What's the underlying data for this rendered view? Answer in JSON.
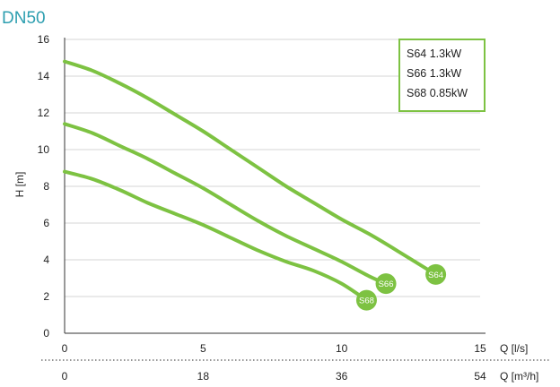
{
  "chart_data": {
    "type": "line",
    "title": "DN50",
    "ylabel": "H [m]",
    "xlabel_primary": "Q [l/s]",
    "xlabel_secondary": "Q [m³/h]",
    "ylim": [
      0,
      16
    ],
    "xlim": [
      0,
      15
    ],
    "y_ticks": [
      "0",
      "2",
      "4",
      "6",
      "8",
      "10",
      "12",
      "14",
      "16"
    ],
    "x_ticks_primary": [
      "0",
      "5",
      "10",
      "15"
    ],
    "x_ticks_secondary": [
      "0",
      "18",
      "36",
      "54"
    ],
    "grid": "horizontal",
    "legend_position": "top-right",
    "legend": [
      "S64 1.3kW",
      "S66 1.3kW",
      "S68 0.85kW"
    ],
    "line_color": "#7dc242",
    "series": [
      {
        "name": "S64",
        "x": [
          0,
          1,
          2,
          3,
          4,
          5,
          6,
          7,
          8,
          9,
          10,
          11,
          12,
          13.4
        ],
        "y": [
          14.8,
          14.3,
          13.6,
          12.8,
          11.9,
          11.0,
          10.0,
          9.0,
          8.0,
          7.1,
          6.2,
          5.4,
          4.5,
          3.2
        ]
      },
      {
        "name": "S66",
        "x": [
          0,
          1,
          2,
          3,
          4,
          5,
          6,
          7,
          8,
          9,
          10,
          11,
          11.6
        ],
        "y": [
          11.4,
          10.9,
          10.2,
          9.5,
          8.7,
          7.9,
          7.0,
          6.1,
          5.3,
          4.6,
          3.9,
          3.1,
          2.7
        ]
      },
      {
        "name": "S68",
        "x": [
          0,
          1,
          2,
          3,
          4,
          5,
          6,
          7,
          8,
          9,
          10,
          10.9
        ],
        "y": [
          8.8,
          8.4,
          7.8,
          7.1,
          6.5,
          5.9,
          5.2,
          4.5,
          3.9,
          3.4,
          2.7,
          1.8
        ]
      }
    ]
  }
}
